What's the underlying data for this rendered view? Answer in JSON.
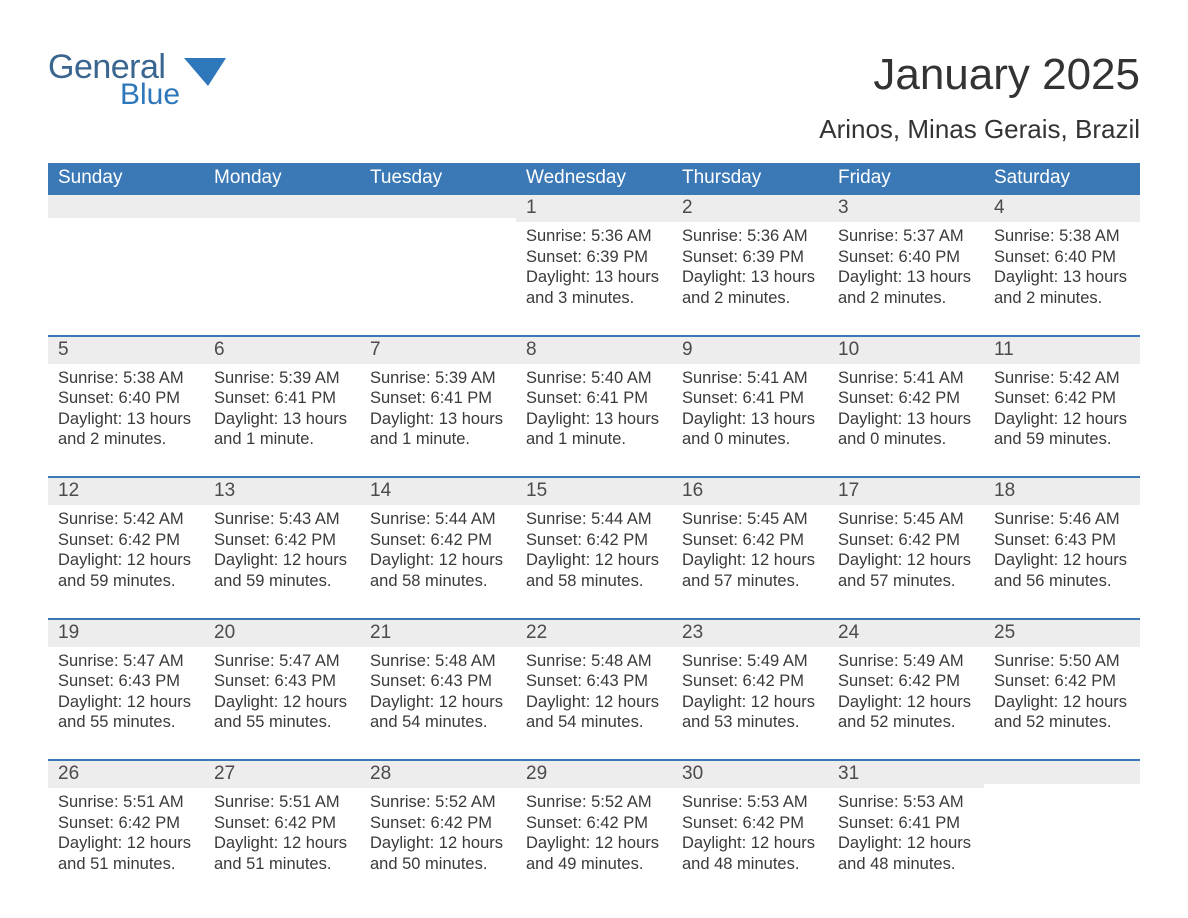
{
  "logo": {
    "word1": "General",
    "word2": "Blue",
    "accent_color": "#2e77bb",
    "text_color": "#39658f"
  },
  "title": "January 2025",
  "location": "Arinos, Minas Gerais, Brazil",
  "colors": {
    "header_bg": "#3a78b6",
    "header_text": "#ffffff",
    "daynum_bg": "#ededed",
    "body_text": "#3a3a3a",
    "rule": "#3a78b6",
    "page_bg": "#ffffff"
  },
  "weekday_labels": [
    "Sunday",
    "Monday",
    "Tuesday",
    "Wednesday",
    "Thursday",
    "Friday",
    "Saturday"
  ],
  "weeks": [
    [
      null,
      null,
      null,
      {
        "n": "1",
        "sunrise": "5:36 AM",
        "sunset": "6:39 PM",
        "daylight": "13 hours and 3 minutes."
      },
      {
        "n": "2",
        "sunrise": "5:36 AM",
        "sunset": "6:39 PM",
        "daylight": "13 hours and 2 minutes."
      },
      {
        "n": "3",
        "sunrise": "5:37 AM",
        "sunset": "6:40 PM",
        "daylight": "13 hours and 2 minutes."
      },
      {
        "n": "4",
        "sunrise": "5:38 AM",
        "sunset": "6:40 PM",
        "daylight": "13 hours and 2 minutes."
      }
    ],
    [
      {
        "n": "5",
        "sunrise": "5:38 AM",
        "sunset": "6:40 PM",
        "daylight": "13 hours and 2 minutes."
      },
      {
        "n": "6",
        "sunrise": "5:39 AM",
        "sunset": "6:41 PM",
        "daylight": "13 hours and 1 minute."
      },
      {
        "n": "7",
        "sunrise": "5:39 AM",
        "sunset": "6:41 PM",
        "daylight": "13 hours and 1 minute."
      },
      {
        "n": "8",
        "sunrise": "5:40 AM",
        "sunset": "6:41 PM",
        "daylight": "13 hours and 1 minute."
      },
      {
        "n": "9",
        "sunrise": "5:41 AM",
        "sunset": "6:41 PM",
        "daylight": "13 hours and 0 minutes."
      },
      {
        "n": "10",
        "sunrise": "5:41 AM",
        "sunset": "6:42 PM",
        "daylight": "13 hours and 0 minutes."
      },
      {
        "n": "11",
        "sunrise": "5:42 AM",
        "sunset": "6:42 PM",
        "daylight": "12 hours and 59 minutes."
      }
    ],
    [
      {
        "n": "12",
        "sunrise": "5:42 AM",
        "sunset": "6:42 PM",
        "daylight": "12 hours and 59 minutes."
      },
      {
        "n": "13",
        "sunrise": "5:43 AM",
        "sunset": "6:42 PM",
        "daylight": "12 hours and 59 minutes."
      },
      {
        "n": "14",
        "sunrise": "5:44 AM",
        "sunset": "6:42 PM",
        "daylight": "12 hours and 58 minutes."
      },
      {
        "n": "15",
        "sunrise": "5:44 AM",
        "sunset": "6:42 PM",
        "daylight": "12 hours and 58 minutes."
      },
      {
        "n": "16",
        "sunrise": "5:45 AM",
        "sunset": "6:42 PM",
        "daylight": "12 hours and 57 minutes."
      },
      {
        "n": "17",
        "sunrise": "5:45 AM",
        "sunset": "6:42 PM",
        "daylight": "12 hours and 57 minutes."
      },
      {
        "n": "18",
        "sunrise": "5:46 AM",
        "sunset": "6:43 PM",
        "daylight": "12 hours and 56 minutes."
      }
    ],
    [
      {
        "n": "19",
        "sunrise": "5:47 AM",
        "sunset": "6:43 PM",
        "daylight": "12 hours and 55 minutes."
      },
      {
        "n": "20",
        "sunrise": "5:47 AM",
        "sunset": "6:43 PM",
        "daylight": "12 hours and 55 minutes."
      },
      {
        "n": "21",
        "sunrise": "5:48 AM",
        "sunset": "6:43 PM",
        "daylight": "12 hours and 54 minutes."
      },
      {
        "n": "22",
        "sunrise": "5:48 AM",
        "sunset": "6:43 PM",
        "daylight": "12 hours and 54 minutes."
      },
      {
        "n": "23",
        "sunrise": "5:49 AM",
        "sunset": "6:42 PM",
        "daylight": "12 hours and 53 minutes."
      },
      {
        "n": "24",
        "sunrise": "5:49 AM",
        "sunset": "6:42 PM",
        "daylight": "12 hours and 52 minutes."
      },
      {
        "n": "25",
        "sunrise": "5:50 AM",
        "sunset": "6:42 PM",
        "daylight": "12 hours and 52 minutes."
      }
    ],
    [
      {
        "n": "26",
        "sunrise": "5:51 AM",
        "sunset": "6:42 PM",
        "daylight": "12 hours and 51 minutes."
      },
      {
        "n": "27",
        "sunrise": "5:51 AM",
        "sunset": "6:42 PM",
        "daylight": "12 hours and 51 minutes."
      },
      {
        "n": "28",
        "sunrise": "5:52 AM",
        "sunset": "6:42 PM",
        "daylight": "12 hours and 50 minutes."
      },
      {
        "n": "29",
        "sunrise": "5:52 AM",
        "sunset": "6:42 PM",
        "daylight": "12 hours and 49 minutes."
      },
      {
        "n": "30",
        "sunrise": "5:53 AM",
        "sunset": "6:42 PM",
        "daylight": "12 hours and 48 minutes."
      },
      {
        "n": "31",
        "sunrise": "5:53 AM",
        "sunset": "6:41 PM",
        "daylight": "12 hours and 48 minutes."
      },
      null
    ]
  ],
  "labels": {
    "sunrise": "Sunrise: ",
    "sunset": "Sunset: ",
    "daylight": "Daylight: "
  },
  "typography": {
    "title_fontsize": 44,
    "location_fontsize": 26,
    "header_fontsize": 19,
    "body_fontsize": 16.5
  }
}
